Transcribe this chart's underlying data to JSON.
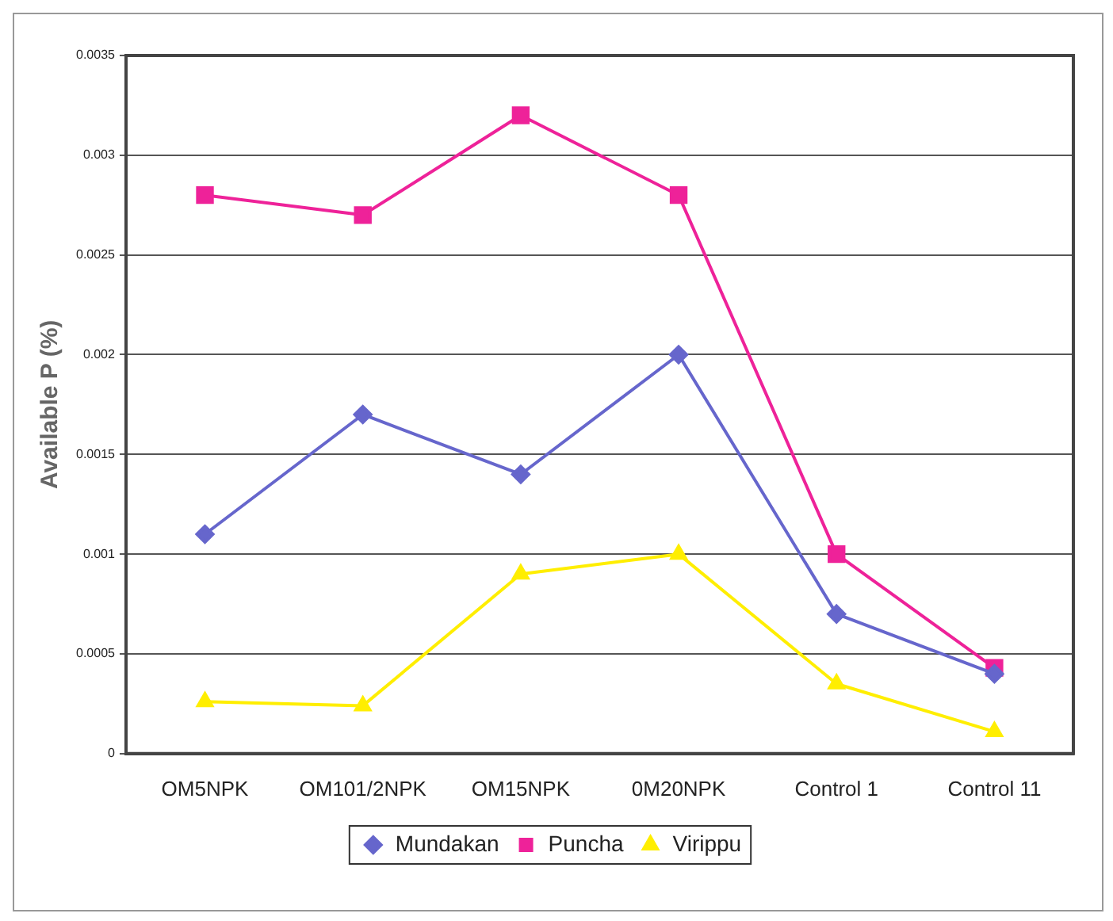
{
  "chart_data": {
    "type": "line",
    "ylabel": "Available P (%)",
    "categories": [
      "OM5NPK",
      "OM101/2NPK",
      "OM15NPK",
      "0M20NPK",
      "Control 1",
      "Control 11"
    ],
    "series": [
      {
        "name": "Mundakan",
        "color": "#6666cc",
        "marker": "diamond",
        "values": [
          0.0011,
          0.0017,
          0.0014,
          0.002,
          0.0007,
          0.0004
        ]
      },
      {
        "name": "Puncha",
        "color": "#ee2299",
        "marker": "square",
        "values": [
          0.0028,
          0.0027,
          0.0032,
          0.0028,
          0.001,
          0.00043
        ]
      },
      {
        "name": "Virippu",
        "color": "#ffee00",
        "marker": "triangle",
        "values": [
          0.00026,
          0.00024,
          0.0009,
          0.001,
          0.00035,
          0.00011
        ]
      }
    ],
    "ylim": [
      0,
      0.0035
    ],
    "yticks": [
      0,
      0.0005,
      0.001,
      0.0015,
      0.002,
      0.0025,
      0.003,
      0.0035
    ],
    "grid": "y",
    "legend": "bottom"
  }
}
